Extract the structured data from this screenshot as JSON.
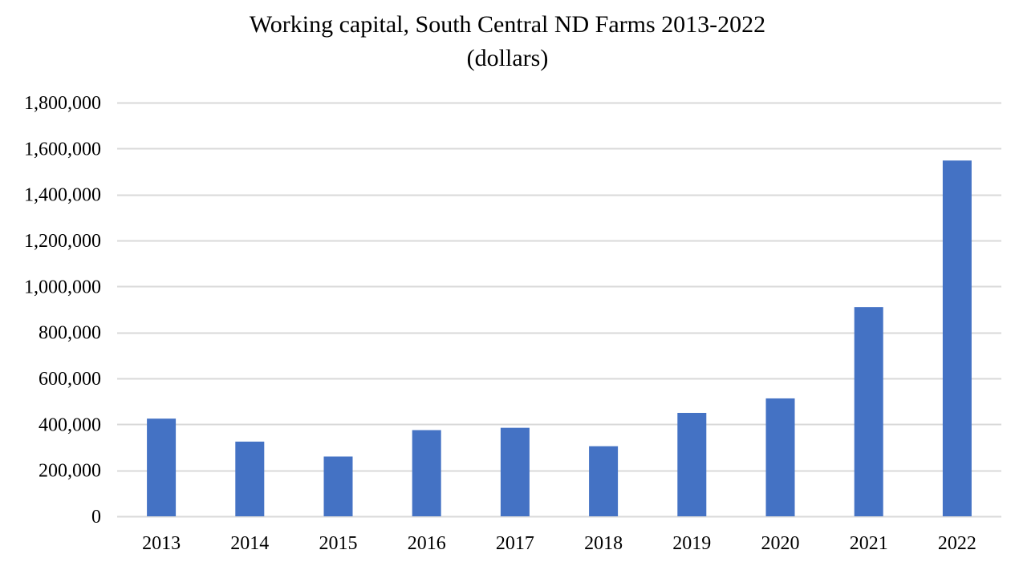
{
  "chart_data": {
    "type": "bar",
    "title": "Working capital, South Central ND Farms 2013-2022",
    "subtitle": "(dollars)",
    "xlabel": "",
    "ylabel": "",
    "categories": [
      "2013",
      "2014",
      "2015",
      "2016",
      "2017",
      "2018",
      "2019",
      "2020",
      "2021",
      "2022"
    ],
    "values": [
      425000,
      325000,
      260000,
      375000,
      385000,
      305000,
      450000,
      513000,
      910000,
      1548000
    ],
    "ylim": [
      0,
      1800000
    ],
    "y_ticks": [
      0,
      200000,
      400000,
      600000,
      800000,
      1000000,
      1200000,
      1400000,
      1600000,
      1800000
    ],
    "y_tick_labels": [
      "0",
      "200,000",
      "400,000",
      "600,000",
      "800,000",
      "1,000,000",
      "1,200,000",
      "1,400,000",
      "1,600,000",
      "1,800,000"
    ],
    "grid": true,
    "legend": "none",
    "colors": {
      "bar": "#4472C4",
      "grid": "#D9D9D9",
      "axis": "#D9D9D9"
    }
  }
}
